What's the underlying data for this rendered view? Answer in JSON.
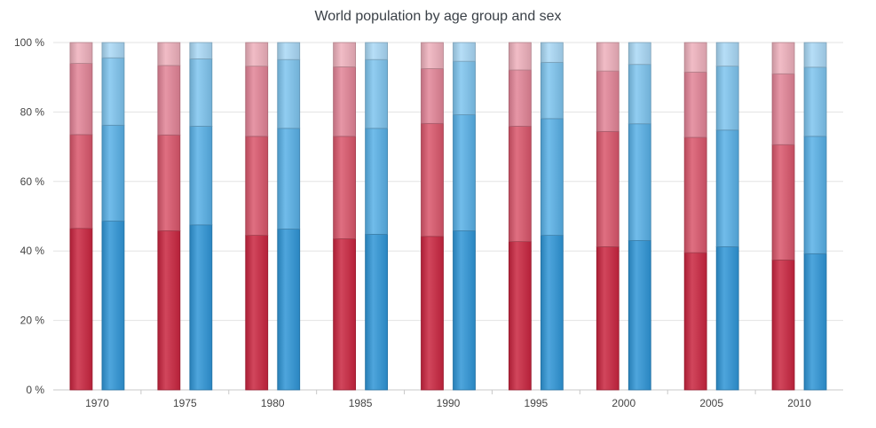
{
  "chart_data": {
    "type": "bar",
    "stacked": true,
    "percent_stacked": true,
    "title": "World population by age group and sex",
    "categories": [
      "1970",
      "1975",
      "1980",
      "1985",
      "1990",
      "1995",
      "2000",
      "2005",
      "2010"
    ],
    "ylim": [
      0,
      100
    ],
    "yticks": [
      "0 %",
      "20 %",
      "40 %",
      "60 %",
      "80 %",
      "100 %"
    ],
    "grid": true,
    "legend": "none",
    "groups": [
      {
        "sex_color": "#d0334e",
        "stack_colors": [
          "#c9253f",
          "#d9566b",
          "#e28396",
          "#eeb0bc"
        ],
        "stacks": [
          [
            46.5,
            27.0,
            20.5,
            6.0
          ],
          [
            45.8,
            27.6,
            20.0,
            6.6
          ],
          [
            44.5,
            28.5,
            20.2,
            6.8
          ],
          [
            43.5,
            29.5,
            20.0,
            7.0
          ],
          [
            44.2,
            32.5,
            15.8,
            7.5
          ],
          [
            42.7,
            33.2,
            16.2,
            7.9
          ],
          [
            41.2,
            33.2,
            17.4,
            8.2
          ],
          [
            39.5,
            33.2,
            18.8,
            8.5
          ],
          [
            37.4,
            33.2,
            20.4,
            9.0
          ]
        ]
      },
      {
        "sex_color": "#3aa0dc",
        "stack_colors": [
          "#2f95d6",
          "#58b0e6",
          "#7ec4ee",
          "#a9d8f5"
        ],
        "stacks": [
          [
            48.6,
            27.6,
            19.4,
            4.4
          ],
          [
            47.5,
            28.4,
            19.4,
            4.7
          ],
          [
            46.3,
            29.0,
            19.8,
            4.9
          ],
          [
            44.8,
            30.5,
            19.8,
            4.9
          ],
          [
            45.8,
            33.4,
            15.4,
            5.4
          ],
          [
            44.5,
            33.6,
            16.2,
            5.7
          ],
          [
            43.0,
            33.6,
            17.1,
            6.3
          ],
          [
            41.2,
            33.6,
            18.4,
            6.8
          ],
          [
            39.2,
            33.8,
            19.9,
            7.1
          ]
        ]
      }
    ]
  }
}
